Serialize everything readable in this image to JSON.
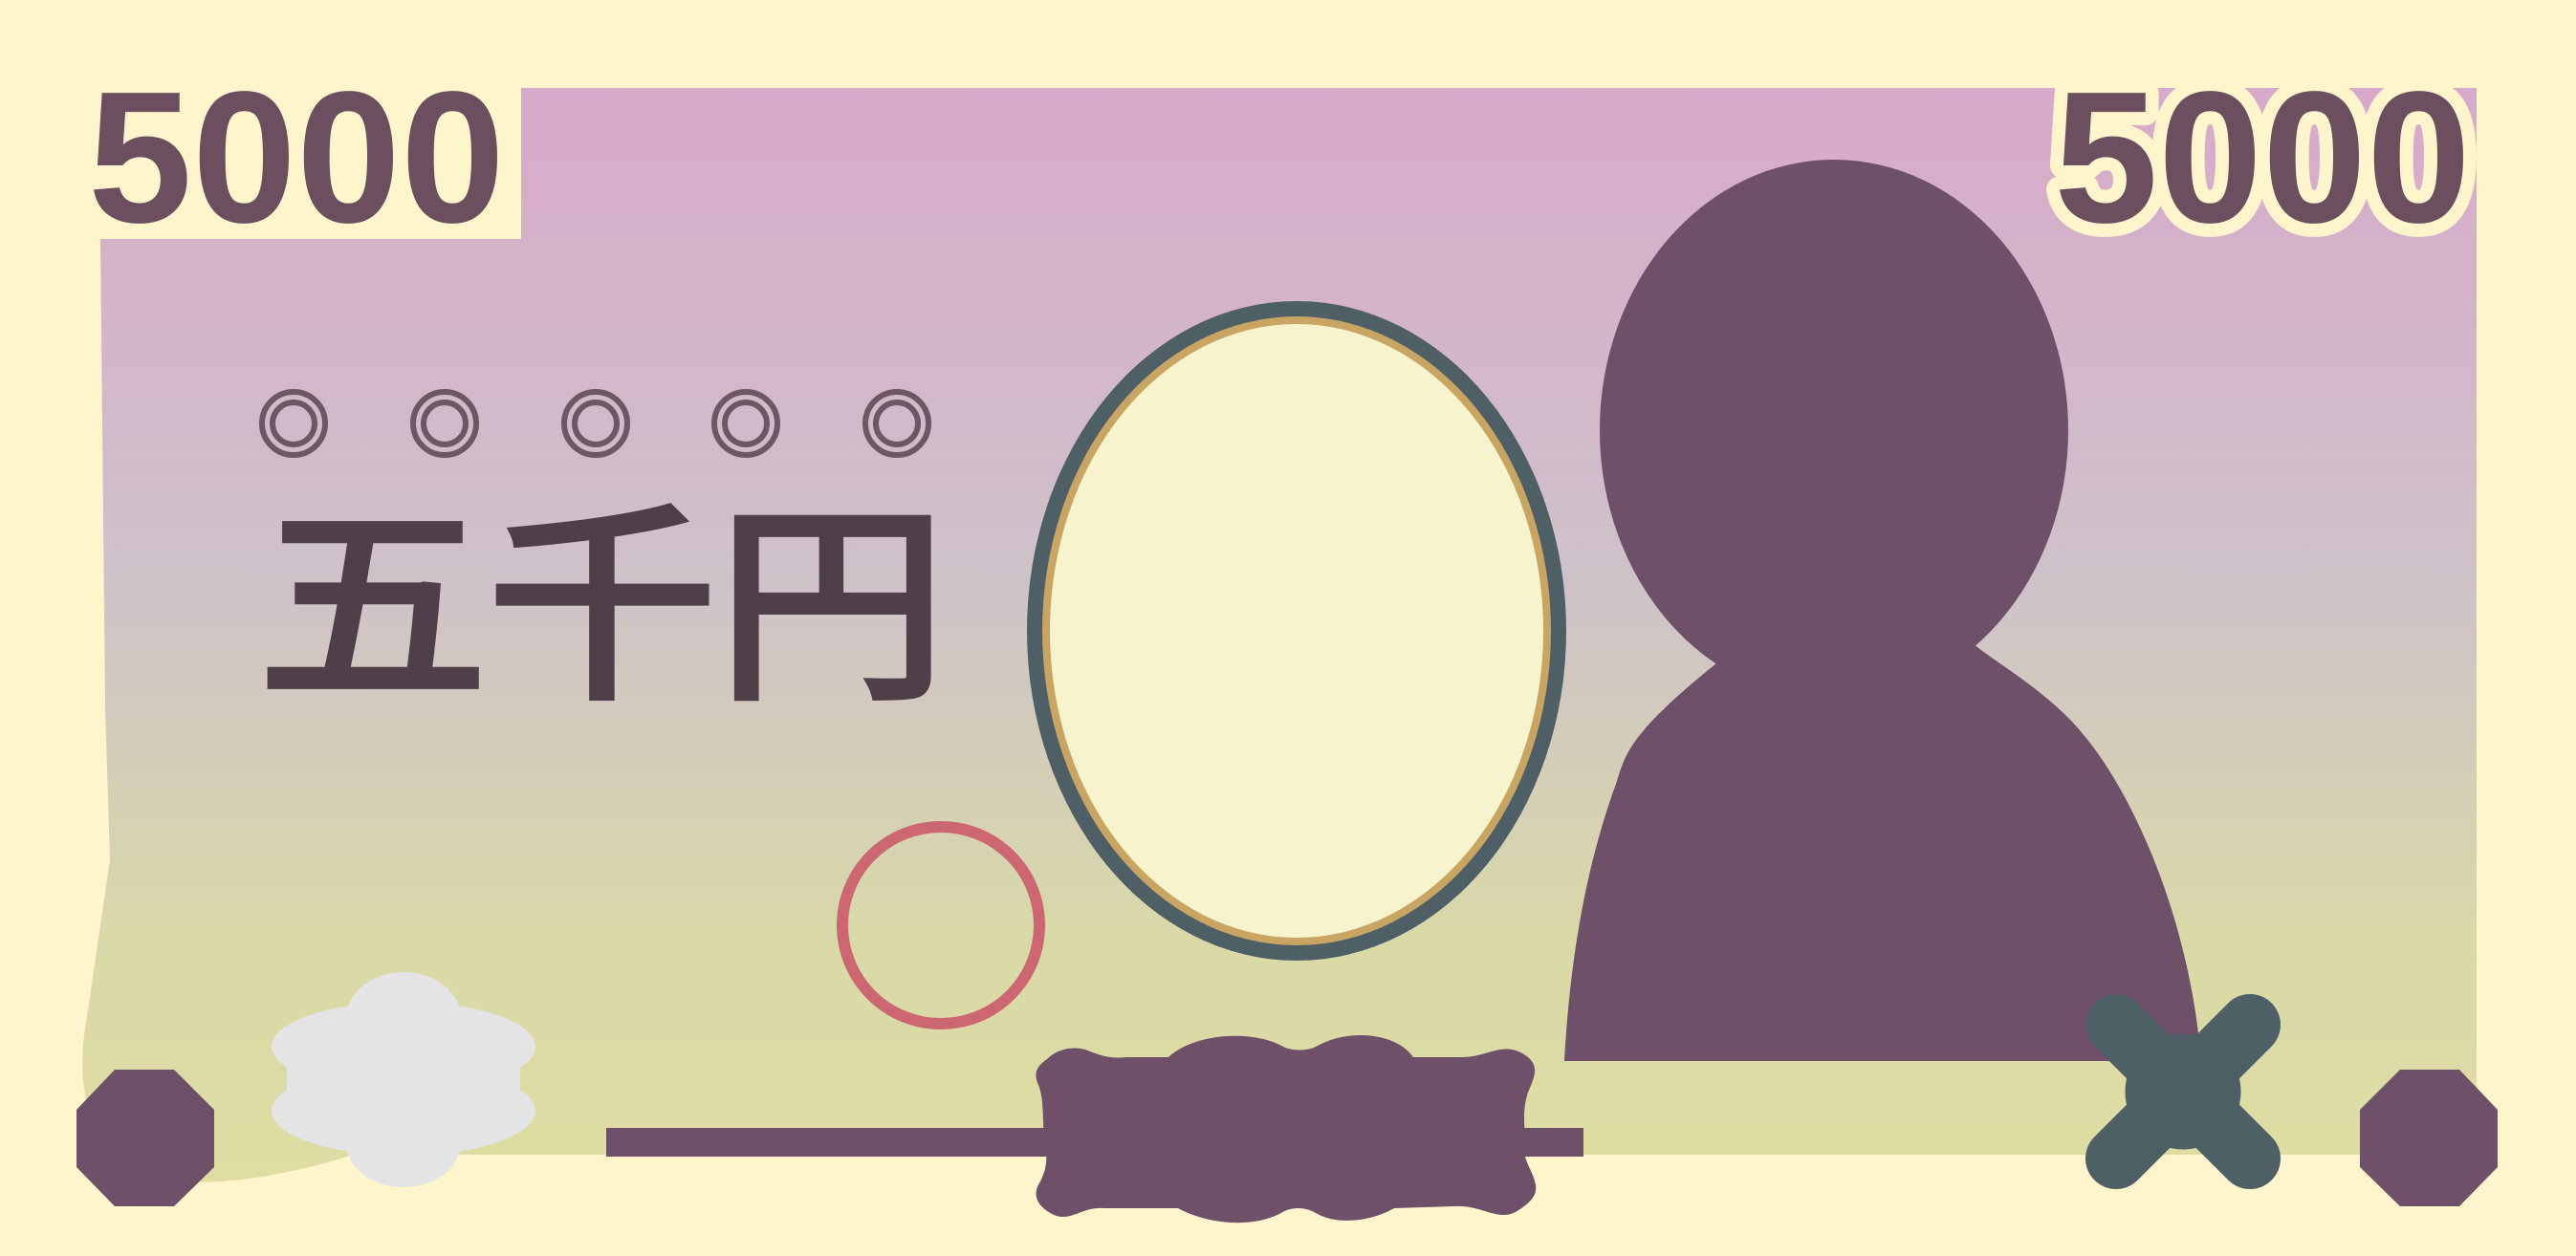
{
  "banknote": {
    "denomination": "5000",
    "kanji_amount": "五千円",
    "serial_placeholder_marks": [
      "○",
      "○",
      "○",
      "○",
      "○"
    ],
    "colors": {
      "paper": "#fff5cc",
      "gradient_top": "#d8a9ca",
      "gradient_bottom": "#dedda2",
      "portrait_silhouette": "#6e5069",
      "oval_frame_outer": "#4f5f66",
      "oval_frame_inner": "#c9a564",
      "oval_fill": "#f7f4cd",
      "seal_ring": "#cc6670",
      "hologram_patch": "#e4e4e4",
      "text_dark": "#4f3f48"
    },
    "icons": {
      "portrait": "person-silhouette-icon",
      "watermark": "oval-watermark-frame",
      "seal": "circle-seal-icon",
      "hologram": "cloud-hologram-icon",
      "tactile_left": "octagon-tactile-mark-icon",
      "tactile_right": "octagon-tactile-mark-icon",
      "tactile_cross": "x-tactile-mark-icon"
    }
  }
}
